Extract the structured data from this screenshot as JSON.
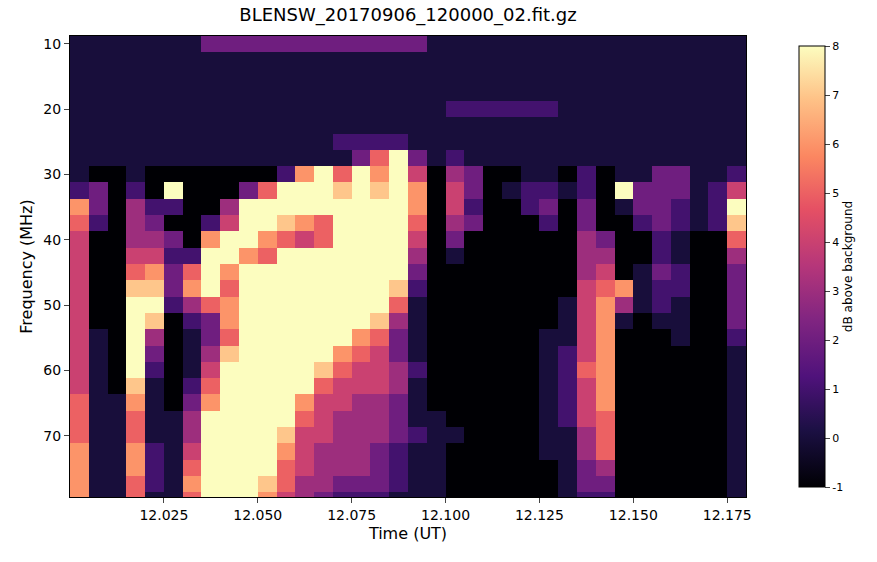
{
  "chart_data": {
    "type": "heatmap",
    "title": "BLENSW_20170906_120000_02.fit.gz",
    "x_label": "Time (UT)",
    "y_label": "Frequency (MHz)",
    "x": [
      12.0025,
      12.0075,
      12.0125,
      12.0175,
      12.0225,
      12.0275,
      12.0325,
      12.0375,
      12.0425,
      12.0475,
      12.0525,
      12.0575,
      12.0625,
      12.0675,
      12.0725,
      12.0775,
      12.0825,
      12.0875,
      12.0925,
      12.0975,
      12.1025,
      12.1075,
      12.1125,
      12.1175,
      12.1225,
      12.1275,
      12.1325,
      12.1375,
      12.1425,
      12.1475,
      12.1525,
      12.1575,
      12.1625,
      12.1675,
      12.1725,
      12.1775
    ],
    "y": [
      10,
      12.5,
      15,
      17.5,
      20,
      22.5,
      25,
      27.5,
      30,
      32.5,
      35,
      37.5,
      40,
      42.5,
      45,
      47.5,
      50,
      52.5,
      55,
      57.5,
      60,
      62.5,
      65,
      67.5,
      70,
      72.5,
      75,
      77.5,
      80
    ],
    "z": [
      [
        0,
        0,
        0,
        0,
        0,
        0,
        0,
        2,
        2,
        2,
        2,
        2,
        2,
        2,
        2,
        2,
        2,
        2,
        2,
        0,
        0,
        0,
        0,
        0,
        0,
        0,
        0,
        0,
        0,
        0,
        0,
        0,
        0,
        0,
        0,
        0
      ],
      [
        0,
        0,
        0,
        0,
        0,
        0,
        0,
        0,
        0,
        0,
        0,
        0,
        0,
        0,
        0,
        0,
        0,
        0,
        0,
        0,
        0,
        0,
        0,
        0,
        0,
        0,
        0,
        0,
        0,
        0,
        0,
        0,
        0,
        0,
        0,
        0
      ],
      [
        0,
        0,
        0,
        0,
        0,
        0,
        0,
        0,
        0,
        0,
        0,
        0,
        0,
        0,
        0,
        0,
        0,
        0,
        0,
        0,
        0,
        0,
        0,
        0,
        0,
        0,
        0,
        0,
        0,
        0,
        0,
        0,
        0,
        0,
        0,
        0
      ],
      [
        0,
        0,
        0,
        0,
        0,
        0,
        0,
        0,
        0,
        0,
        0,
        0,
        0,
        0,
        0,
        0,
        0,
        0,
        0,
        0,
        0,
        0,
        0,
        0,
        0,
        0,
        0,
        0,
        0,
        0,
        0,
        0,
        0,
        0,
        0,
        0
      ],
      [
        0,
        0,
        0,
        0,
        0,
        0,
        0,
        0,
        0,
        0,
        0,
        0,
        0,
        0,
        0,
        0,
        0,
        0,
        0,
        0,
        1,
        1,
        1,
        1,
        1,
        1,
        0,
        0,
        0,
        0,
        0,
        0,
        0,
        0,
        0,
        0
      ],
      [
        0,
        0,
        0,
        0,
        0,
        0,
        0,
        0,
        0,
        0,
        0,
        0,
        0,
        0,
        0,
        0,
        0,
        0,
        0,
        0,
        0,
        0,
        0,
        0,
        0,
        0,
        0,
        0,
        0,
        0,
        0,
        0,
        0,
        0,
        0,
        0
      ],
      [
        0,
        0,
        0,
        0,
        0,
        0,
        0,
        0,
        0,
        0,
        0,
        0,
        0,
        0,
        1,
        1,
        1,
        1,
        0,
        0,
        0,
        0,
        0,
        0,
        0,
        0,
        0,
        0,
        0,
        0,
        0,
        0,
        0,
        0,
        0,
        0
      ],
      [
        0,
        0,
        0,
        0,
        0,
        0,
        0,
        0,
        0,
        0,
        0,
        0,
        0,
        0,
        0,
        2,
        5,
        8,
        2,
        0,
        1,
        0,
        0,
        0,
        0,
        0,
        0,
        0,
        0,
        0,
        0,
        0,
        0,
        0,
        0,
        0
      ],
      [
        0,
        -1,
        -1,
        0,
        -1,
        -1,
        -1,
        -1,
        -1,
        -1,
        -1,
        1,
        6,
        8,
        5,
        8,
        6,
        8,
        4,
        -1,
        3,
        2,
        -1,
        -1,
        0,
        0,
        -1,
        1,
        -1,
        0,
        0,
        2,
        2,
        0,
        0,
        1
      ],
      [
        1,
        2,
        -1,
        1,
        -1,
        8,
        -1,
        -1,
        -1,
        2,
        5,
        8,
        8,
        8,
        7,
        8,
        7,
        8,
        6,
        -1,
        4,
        2,
        -1,
        0,
        1,
        1,
        0,
        1,
        -1,
        8,
        2,
        2,
        2,
        0,
        1,
        4
      ],
      [
        6,
        2,
        -1,
        3,
        1,
        1,
        -1,
        -1,
        3,
        8,
        8,
        8,
        8,
        8,
        8,
        8,
        8,
        8,
        6,
        -1,
        4,
        1,
        -1,
        -1,
        1,
        2,
        -1,
        2,
        -1,
        0,
        2,
        2,
        1,
        0,
        1,
        8
      ],
      [
        5,
        1,
        -1,
        3,
        2,
        -1,
        -1,
        1,
        4,
        8,
        8,
        7,
        6,
        5,
        8,
        8,
        8,
        8,
        5,
        -1,
        3,
        2,
        -1,
        -1,
        -1,
        1,
        -1,
        2,
        -1,
        -1,
        1,
        2,
        1,
        0,
        1,
        7
      ],
      [
        4,
        -1,
        -1,
        3,
        3,
        2,
        -1,
        6,
        8,
        8,
        6,
        5,
        4,
        5,
        8,
        8,
        8,
        8,
        4,
        -1,
        2,
        -1,
        -1,
        -1,
        -1,
        -1,
        -1,
        3,
        2,
        -1,
        -1,
        1,
        0,
        -1,
        -1,
        5
      ],
      [
        4,
        -1,
        -1,
        4,
        4,
        1,
        1,
        8,
        8,
        6,
        5,
        8,
        8,
        8,
        8,
        8,
        8,
        8,
        3,
        -1,
        0,
        -1,
        -1,
        -1,
        -1,
        -1,
        -1,
        3,
        3,
        -1,
        -1,
        1,
        0,
        -1,
        -1,
        3
      ],
      [
        4,
        -1,
        -1,
        5,
        6,
        2,
        5,
        8,
        6,
        8,
        8,
        8,
        8,
        8,
        8,
        8,
        8,
        8,
        2,
        -1,
        -1,
        -1,
        -1,
        -1,
        -1,
        -1,
        -1,
        3,
        4,
        -1,
        0,
        2,
        1,
        -1,
        -1,
        2
      ],
      [
        4,
        -1,
        -1,
        7,
        7,
        2,
        6,
        8,
        5,
        8,
        8,
        8,
        8,
        8,
        8,
        8,
        8,
        7,
        1,
        -1,
        -1,
        -1,
        -1,
        -1,
        -1,
        -1,
        -1,
        4,
        5,
        6,
        0,
        1,
        1,
        -1,
        -1,
        2
      ],
      [
        4,
        -1,
        -1,
        8,
        8,
        1,
        3,
        5,
        6,
        8,
        8,
        8,
        8,
        8,
        8,
        8,
        8,
        5,
        0,
        -1,
        -1,
        -1,
        -1,
        -1,
        -1,
        -1,
        0,
        4,
        6,
        3,
        0,
        1,
        0,
        -1,
        -1,
        2
      ],
      [
        4,
        -1,
        -1,
        8,
        7,
        -1,
        1,
        2,
        6,
        8,
        8,
        8,
        8,
        8,
        8,
        8,
        7,
        3,
        0,
        -1,
        -1,
        -1,
        -1,
        -1,
        -1,
        -1,
        0,
        4,
        6,
        0,
        -1,
        0,
        0,
        -1,
        -1,
        2
      ],
      [
        4,
        0,
        -1,
        8,
        3,
        -1,
        0,
        2,
        5,
        8,
        8,
        8,
        8,
        8,
        8,
        6,
        5,
        2,
        0,
        -1,
        -1,
        -1,
        -1,
        -1,
        -1,
        0,
        0,
        4,
        6,
        -1,
        -1,
        -1,
        0,
        -1,
        -1,
        1
      ],
      [
        4,
        0,
        -1,
        8,
        2,
        -1,
        0,
        3,
        7,
        8,
        8,
        8,
        8,
        8,
        6,
        5,
        4,
        2,
        0,
        -1,
        -1,
        -1,
        -1,
        -1,
        -1,
        0,
        1,
        4,
        6,
        -1,
        -1,
        -1,
        -1,
        -1,
        -1,
        0
      ],
      [
        4,
        0,
        -1,
        8,
        1,
        -1,
        0,
        4,
        8,
        8,
        8,
        8,
        8,
        7,
        5,
        4,
        4,
        3,
        1,
        -1,
        -1,
        -1,
        -1,
        -1,
        -1,
        0,
        1,
        5,
        6,
        -1,
        -1,
        -1,
        -1,
        -1,
        -1,
        0
      ],
      [
        4,
        0,
        -1,
        7,
        0,
        -1,
        1,
        5,
        8,
        8,
        8,
        8,
        8,
        5,
        4,
        4,
        4,
        3,
        0,
        -1,
        -1,
        -1,
        -1,
        -1,
        -1,
        0,
        1,
        4,
        6,
        -1,
        -1,
        -1,
        -1,
        -1,
        -1,
        0
      ],
      [
        5,
        0,
        0,
        6,
        0,
        -1,
        2,
        6,
        8,
        8,
        8,
        8,
        6,
        4,
        4,
        3,
        3,
        2,
        0,
        -1,
        -1,
        -1,
        -1,
        -1,
        -1,
        0,
        1,
        4,
        6,
        -1,
        -1,
        -1,
        -1,
        -1,
        -1,
        0
      ],
      [
        5,
        0,
        0,
        5,
        0,
        0,
        3,
        8,
        8,
        8,
        8,
        8,
        5,
        4,
        3,
        3,
        3,
        2,
        0,
        0,
        -1,
        -1,
        -1,
        -1,
        -1,
        0,
        1,
        4,
        5,
        -1,
        -1,
        -1,
        -1,
        -1,
        -1,
        0
      ],
      [
        5,
        0,
        0,
        5,
        0,
        0,
        3,
        8,
        8,
        8,
        8,
        7,
        4,
        4,
        3,
        3,
        3,
        2,
        1,
        0,
        0,
        -1,
        -1,
        -1,
        -1,
        0,
        0,
        3,
        5,
        -1,
        -1,
        -1,
        -1,
        -1,
        -1,
        0
      ],
      [
        6,
        0,
        0,
        6,
        1,
        0,
        4,
        8,
        8,
        8,
        8,
        6,
        4,
        3,
        3,
        3,
        2,
        1,
        0,
        0,
        -1,
        -1,
        -1,
        -1,
        -1,
        0,
        0,
        3,
        5,
        -1,
        -1,
        -1,
        -1,
        -1,
        -1,
        0
      ],
      [
        6,
        0,
        0,
        6,
        1,
        0,
        5,
        8,
        8,
        8,
        8,
        5,
        4,
        3,
        3,
        3,
        2,
        1,
        0,
        0,
        -1,
        -1,
        -1,
        -1,
        -1,
        -1,
        0,
        2,
        3,
        -1,
        -1,
        -1,
        -1,
        -1,
        -1,
        0
      ],
      [
        6,
        0,
        0,
        5,
        1,
        0,
        6,
        8,
        8,
        8,
        7,
        5,
        3,
        3,
        2,
        2,
        2,
        1,
        0,
        0,
        -1,
        -1,
        -1,
        -1,
        -1,
        -1,
        0,
        2,
        2,
        -1,
        -1,
        -1,
        -1,
        -1,
        -1,
        0
      ],
      [
        6,
        0,
        0,
        5,
        0,
        0,
        5,
        8,
        8,
        8,
        6,
        4,
        3,
        2,
        1,
        1,
        1,
        0,
        0,
        0,
        -1,
        -1,
        -1,
        -1,
        -1,
        -1,
        0,
        1,
        1,
        -1,
        -1,
        -1,
        -1,
        -1,
        -1,
        0
      ]
    ],
    "xlim": [
      12.0,
      12.18
    ],
    "ylim": [
      79.4,
      8.8
    ],
    "xticks": [
      12.025,
      {
        "value": 12.05,
        "label": "12.050"
      },
      12.075,
      {
        "value": 12.1,
        "label": "12.100"
      },
      12.125,
      {
        "value": 12.15,
        "label": "12.150"
      },
      12.175
    ],
    "yticks": [
      10,
      20,
      30,
      40,
      50,
      60,
      70
    ],
    "colorbar": {
      "title": "dB above background",
      "range": [
        -1,
        8
      ],
      "ticks": [
        -1,
        0,
        1,
        2,
        3,
        4,
        5,
        6,
        7,
        8
      ]
    }
  }
}
